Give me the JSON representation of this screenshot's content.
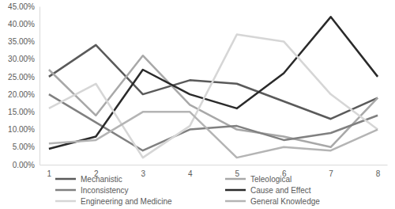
{
  "chart_data": {
    "type": "line",
    "categories": [
      "1",
      "2",
      "3",
      "4",
      "5",
      "6",
      "7",
      "8"
    ],
    "series": [
      {
        "name": "Mechanistic",
        "color": "#5a5a5a",
        "values": [
          25,
          34,
          20,
          24,
          23,
          18,
          13,
          19
        ]
      },
      {
        "name": "Teleological",
        "color": "#a8a8a8",
        "values": [
          27,
          14,
          31,
          17,
          10,
          8,
          5,
          19
        ]
      },
      {
        "name": "Inconsistency",
        "color": "#808080",
        "values": [
          20,
          12,
          4,
          10,
          11,
          7,
          9,
          14
        ]
      },
      {
        "name": "Cause and Effect",
        "color": "#2a2a2a",
        "values": [
          4.5,
          8,
          27,
          20,
          16,
          26,
          42,
          25
        ]
      },
      {
        "name": "Engineering and Medicine",
        "color": "#d6d6d6",
        "values": [
          16,
          23,
          2,
          11,
          37,
          35,
          20,
          10
        ]
      },
      {
        "name": "General Knowledge",
        "color": "#b4b4b4",
        "values": [
          6,
          7,
          15,
          15,
          2,
          5,
          4,
          10
        ]
      }
    ],
    "ylim": [
      0,
      45
    ],
    "yticks": [
      {
        "value": 0,
        "label": "0.00%"
      },
      {
        "value": 5,
        "label": "5.00%"
      },
      {
        "value": 10,
        "label": "10.00%"
      },
      {
        "value": 15,
        "label": "15.00%"
      },
      {
        "value": 20,
        "label": "20.00%"
      },
      {
        "value": 25,
        "label": "25.00%"
      },
      {
        "value": 30,
        "label": "30.00%"
      },
      {
        "value": 35,
        "label": "35.00%"
      },
      {
        "value": 40,
        "label": "40.00%"
      },
      {
        "value": 45,
        "label": "45.00%"
      }
    ],
    "grid": false,
    "legend": "bottom"
  }
}
